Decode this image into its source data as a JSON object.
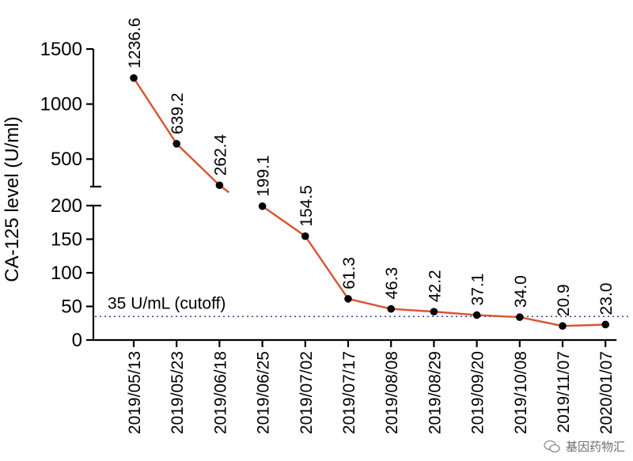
{
  "chart_data": {
    "type": "line",
    "ylabel": "CA-125 level (U/ml)",
    "xlabel": "",
    "title": "",
    "categories": [
      "2019/05/13",
      "2019/05/23",
      "2019/06/18",
      "2019/06/25",
      "2019/07/02",
      "2019/07/17",
      "2019/08/08",
      "2019/08/29",
      "2019/09/20",
      "2019/10/08",
      "2019/11/07",
      "2020/01/07"
    ],
    "values": [
      1236.6,
      639.2,
      262.4,
      199.1,
      154.5,
      61.3,
      46.3,
      42.2,
      37.1,
      34.0,
      20.9,
      23.0
    ],
    "value_labels": [
      "1236.6",
      "639.2",
      "262.4",
      "199.1",
      "154.5",
      "61.3",
      "46.3",
      "42.2",
      "37.1",
      "34.0",
      "20.9",
      "23.0"
    ],
    "y_axis_segments": [
      {
        "range": [
          0,
          200
        ],
        "ticks": [
          "0",
          "50",
          "100",
          "150",
          "200"
        ]
      },
      {
        "range": [
          250,
          1500
        ],
        "ticks": [
          "500",
          "1000",
          "1500"
        ]
      }
    ],
    "axis_break": true,
    "reference_line": {
      "value": 35,
      "label": "35 U/mL (cutoff)",
      "style": "dotted",
      "color": "#3b3b9a"
    },
    "line_color": "#d9532f",
    "marker_color": "#000000",
    "grid": false
  },
  "watermark": {
    "text": "基因药物汇",
    "icon": "wechat-icon"
  }
}
